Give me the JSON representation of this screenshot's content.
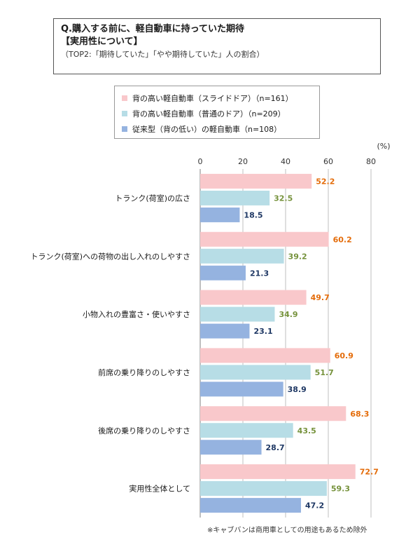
{
  "header": {
    "line1": "Q.購入する前に、軽自動車に持っていた期待",
    "line2": "【実用性について】",
    "line3": "（TOP2:「期待していた」「やや期待していた」人の割合）"
  },
  "footnote": "※キャブバンは商用車としての用途もあるため除外",
  "chart_data": {
    "type": "bar",
    "orientation": "horizontal",
    "unit_label": "(%)",
    "xlim": [
      0,
      80
    ],
    "ticks": [
      0,
      20,
      40,
      60,
      80
    ],
    "grid": true,
    "legend_position": "top",
    "categories": [
      "トランク(荷室)の広さ",
      "トランク(荷室)への荷物の出し入れのしやすさ",
      "小物入れの豊富さ・使いやすさ",
      "前席の乗り降りのしやすさ",
      "後席の乗り降りのしやすさ",
      "実用性全体として"
    ],
    "series": [
      {
        "name": "背の高い軽自動車（スライドドア）（n=161）",
        "color": "#f9c8cb",
        "label_color": "#e46c0a",
        "values": [
          52.2,
          60.2,
          49.7,
          60.9,
          68.3,
          72.7
        ]
      },
      {
        "name": "背の高い軽自動車（普通のドア）（n=209）",
        "color": "#b7dde6",
        "label_color": "#76923c",
        "values": [
          32.5,
          39.2,
          34.9,
          51.7,
          43.5,
          59.3
        ]
      },
      {
        "name": "従来型（背の低い）の軽自動車（n=108）",
        "color": "#95b3e0",
        "label_color": "#1f3864",
        "values": [
          18.5,
          21.3,
          23.1,
          38.9,
          28.7,
          47.2
        ]
      }
    ]
  }
}
